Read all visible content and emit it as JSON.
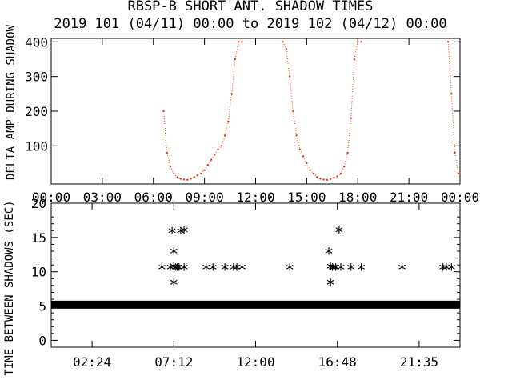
{
  "chart_data": [
    {
      "type": "scatter",
      "title": "RBSP-B SHORT ANT. SHADOW TIMES",
      "subtitle": "2019 101 (04/11) 00:00 to 2019 102 (04/12) 00:00",
      "xlabel": "",
      "ylabel": "DELTA AMP DURING SHADOW",
      "xlim": [
        "00:00",
        "24:00"
      ],
      "ylim": [
        -10,
        410
      ],
      "x_tick_labels": [
        "00:00",
        "03:00",
        "06:00",
        "09:00",
        "12:00",
        "15:00",
        "18:00",
        "21:00",
        "00:00"
      ],
      "y_ticks": [
        100,
        200,
        300,
        400
      ],
      "color": "#e8391a",
      "series": [
        {
          "x_hours": [
            6.6,
            6.8,
            7.0,
            7.2,
            7.4,
            7.6,
            7.8,
            8.0,
            8.2,
            8.4,
            8.6,
            8.8,
            9.0,
            9.2,
            9.4,
            9.6,
            9.8,
            10.0,
            10.2,
            10.4,
            10.6,
            10.8,
            11.0,
            11.2
          ],
          "y": [
            200,
            80,
            40,
            20,
            10,
            5,
            3,
            2,
            5,
            10,
            15,
            20,
            30,
            45,
            60,
            75,
            90,
            100,
            130,
            170,
            250,
            350,
            400,
            400
          ]
        },
        {
          "x_hours": [
            13.6,
            13.8,
            14.0,
            14.2,
            14.4,
            14.6,
            14.8,
            15.0,
            15.2,
            15.4,
            15.6,
            15.8,
            16.0,
            16.2,
            16.4,
            16.6,
            16.8,
            17.0,
            17.2,
            17.4,
            17.6,
            17.8,
            18.0,
            18.2
          ],
          "y": [
            400,
            380,
            300,
            200,
            130,
            90,
            70,
            50,
            30,
            20,
            10,
            5,
            3,
            2,
            4,
            8,
            12,
            20,
            40,
            80,
            180,
            350,
            400,
            400
          ]
        },
        {
          "x_hours": [
            23.3,
            23.5,
            23.7,
            23.9
          ],
          "y": [
            400,
            250,
            80,
            20
          ]
        }
      ]
    },
    {
      "type": "scatter",
      "title": "",
      "xlabel": "",
      "ylabel": "TIME BETWEEN SHADOWS (SEC)",
      "xlim": [
        "00:00",
        "24:00"
      ],
      "ylim": [
        -1,
        20
      ],
      "x_tick_labels": [
        "02:24",
        "07:12",
        "12:00",
        "16:48",
        "21:35"
      ],
      "y_ticks": [
        0,
        5,
        10,
        15,
        20
      ],
      "marker": "*",
      "baseline": {
        "y": 5.2,
        "x_start_hours": 0.0,
        "x_end_hours": 24.0
      },
      "points": [
        {
          "x_hours": 6.5,
          "y": 10.5
        },
        {
          "x_hours": 7.0,
          "y": 10.5
        },
        {
          "x_hours": 7.1,
          "y": 15.8
        },
        {
          "x_hours": 7.2,
          "y": 12.8
        },
        {
          "x_hours": 7.2,
          "y": 10.6
        },
        {
          "x_hours": 7.2,
          "y": 8.3
        },
        {
          "x_hours": 7.3,
          "y": 10.5
        },
        {
          "x_hours": 7.4,
          "y": 10.5
        },
        {
          "x_hours": 7.5,
          "y": 10.5
        },
        {
          "x_hours": 7.6,
          "y": 15.8
        },
        {
          "x_hours": 7.8,
          "y": 10.5
        },
        {
          "x_hours": 7.8,
          "y": 15.9
        },
        {
          "x_hours": 9.1,
          "y": 10.5
        },
        {
          "x_hours": 9.5,
          "y": 10.5
        },
        {
          "x_hours": 10.2,
          "y": 10.5
        },
        {
          "x_hours": 10.7,
          "y": 10.5
        },
        {
          "x_hours": 10.9,
          "y": 10.5
        },
        {
          "x_hours": 11.2,
          "y": 10.5
        },
        {
          "x_hours": 14.0,
          "y": 10.5
        },
        {
          "x_hours": 16.3,
          "y": 12.8
        },
        {
          "x_hours": 16.4,
          "y": 10.6
        },
        {
          "x_hours": 16.4,
          "y": 8.3
        },
        {
          "x_hours": 16.5,
          "y": 10.5
        },
        {
          "x_hours": 16.6,
          "y": 10.5
        },
        {
          "x_hours": 16.7,
          "y": 10.5
        },
        {
          "x_hours": 16.9,
          "y": 15.9
        },
        {
          "x_hours": 17.0,
          "y": 10.5
        },
        {
          "x_hours": 17.6,
          "y": 10.5
        },
        {
          "x_hours": 18.2,
          "y": 10.5
        },
        {
          "x_hours": 20.6,
          "y": 10.5
        },
        {
          "x_hours": 23.0,
          "y": 10.5
        },
        {
          "x_hours": 23.2,
          "y": 10.5
        },
        {
          "x_hours": 23.5,
          "y": 10.5
        }
      ]
    }
  ]
}
